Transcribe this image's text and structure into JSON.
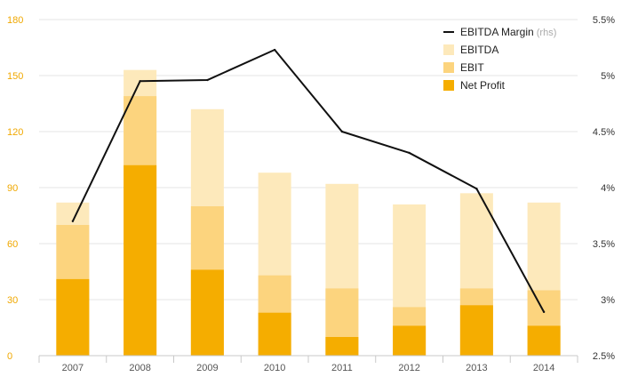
{
  "chart_data": {
    "type": "bar",
    "categories": [
      "2007",
      "2008",
      "2009",
      "2010",
      "2011",
      "2012",
      "2013",
      "2014"
    ],
    "series": [
      {
        "name": "EBITDA",
        "kind": "bar",
        "axis": "left",
        "color": "#fde9bb",
        "values": [
          82,
          153,
          132,
          98,
          92,
          81,
          87,
          82
        ]
      },
      {
        "name": "EBIT",
        "kind": "bar",
        "axis": "left",
        "color": "#fcd47e",
        "values": [
          70,
          139,
          80,
          43,
          36,
          26,
          36,
          35
        ]
      },
      {
        "name": "Net Profit",
        "kind": "bar",
        "axis": "left",
        "color": "#f5ad00",
        "values": [
          41,
          102,
          46,
          23,
          10,
          16,
          27,
          16
        ]
      },
      {
        "name": "EBITDA Margin",
        "kind": "line",
        "axis": "right",
        "color": "#111111",
        "values": [
          3.7,
          4.95,
          4.96,
          5.23,
          4.5,
          4.31,
          3.99,
          2.89
        ]
      }
    ],
    "legend": [
      {
        "label": "EBITDA Margin",
        "note": "(rhs)",
        "marker": "line",
        "color": "#111111"
      },
      {
        "label": "EBITDA",
        "marker": "square",
        "color": "#fde9bb"
      },
      {
        "label": "EBIT",
        "marker": "square",
        "color": "#fcd47e"
      },
      {
        "label": "Net Profit",
        "marker": "square",
        "color": "#f5ad00"
      }
    ],
    "legend_position": "top-right",
    "y_left": {
      "lim": [
        0,
        180
      ],
      "ticks": [
        "0",
        "30",
        "60",
        "90",
        "120",
        "150",
        "180"
      ],
      "tick_values": [
        0,
        30,
        60,
        90,
        120,
        150,
        180
      ],
      "color": "#f0a800"
    },
    "y_right": {
      "lim": [
        2.5,
        5.5
      ],
      "ticks": [
        "2.5%",
        "3%",
        "3.5%",
        "4%",
        "4.5%",
        "5%",
        "5.5%"
      ],
      "tick_values": [
        2.5,
        3,
        3.5,
        4,
        4.5,
        5,
        5.5
      ]
    },
    "grid": true,
    "title": "",
    "xlabel": "",
    "ylabel": ""
  }
}
